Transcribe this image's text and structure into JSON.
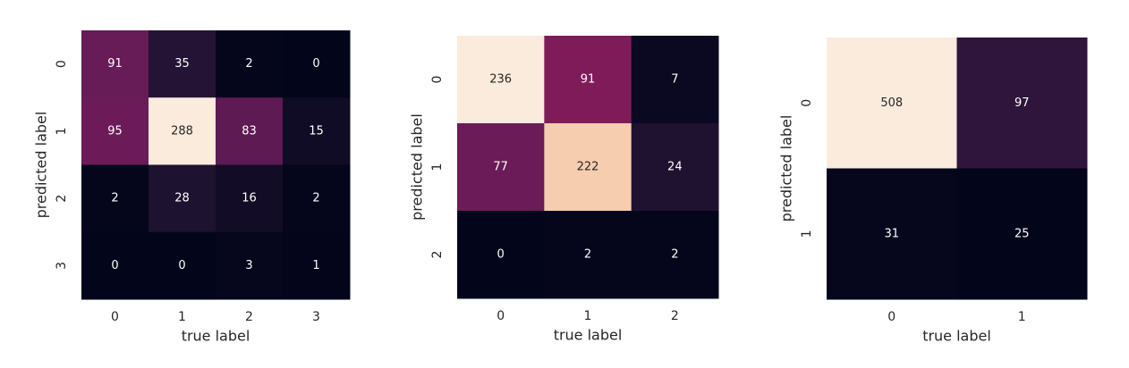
{
  "chart_data": [
    {
      "type": "heatmap",
      "xlabel": "true label",
      "ylabel": "predicted label",
      "x_ticks": [
        "0",
        "1",
        "2",
        "3"
      ],
      "y_ticks": [
        "0",
        "1",
        "2",
        "3"
      ],
      "values": [
        [
          91,
          35,
          2,
          0
        ],
        [
          95,
          288,
          83,
          15
        ],
        [
          2,
          28,
          16,
          2
        ],
        [
          0,
          0,
          3,
          1
        ]
      ]
    },
    {
      "type": "heatmap",
      "xlabel": "true label",
      "ylabel": "predicted label",
      "x_ticks": [
        "0",
        "1",
        "2"
      ],
      "y_ticks": [
        "0",
        "1",
        "2"
      ],
      "values": [
        [
          236,
          91,
          7
        ],
        [
          77,
          222,
          24
        ],
        [
          0,
          2,
          2
        ]
      ]
    },
    {
      "type": "heatmap",
      "xlabel": "true label",
      "ylabel": "predicted label",
      "x_ticks": [
        "0",
        "1"
      ],
      "y_ticks": [
        "0",
        "1"
      ],
      "values": [
        [
          508,
          97
        ],
        [
          31,
          25
        ]
      ]
    }
  ],
  "colormap": "rocket",
  "colorbar": false
}
